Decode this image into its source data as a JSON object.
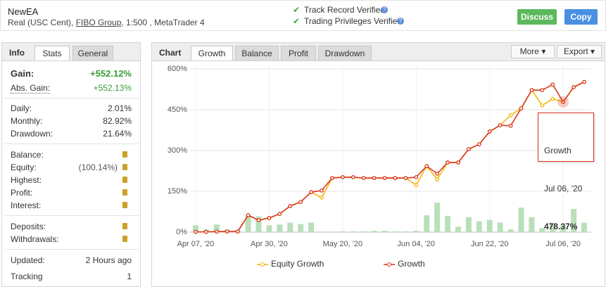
{
  "header": {
    "title": "NewEA",
    "account": "Real (USC Cent), ",
    "broker": "FIBO Group",
    "details": ", 1:500 , MetaTrader 4",
    "badges": [
      "Track Record Verified",
      "Trading Privileges Verified"
    ],
    "buttons": [
      "Discuss",
      "Copy"
    ]
  },
  "info": {
    "tabs": [
      "Info",
      "Stats",
      "General"
    ],
    "gain": {
      "label": "Gain:",
      "value": "+552.12%"
    },
    "abs_gain": {
      "label": "Abs. Gain:",
      "value": "+552.13%"
    },
    "stats": [
      [
        "Daily:",
        "2.01%"
      ],
      [
        "Monthly:",
        "82.92%"
      ],
      [
        "Drawdown:",
        "21.64%"
      ]
    ],
    "funds": [
      [
        "Balance:"
      ],
      [
        "Equity:",
        "(100.14%)"
      ],
      [
        "Highest:"
      ],
      [
        "Profit:"
      ],
      [
        "Interest:"
      ]
    ],
    "transfers": [
      [
        "Deposits:"
      ],
      [
        "Withdrawals:"
      ]
    ],
    "meta": [
      [
        "Updated:",
        "2 Hours ago"
      ],
      [
        "Tracking",
        "1"
      ]
    ]
  },
  "chart_panel": {
    "tabs": [
      "Chart",
      "Growth",
      "Balance",
      "Profit",
      "Drawdown"
    ],
    "menus": [
      "More",
      "Export"
    ]
  },
  "chart_data": {
    "type": "line",
    "categories": [
      "Apr 07, '20",
      null,
      null,
      null,
      null,
      null,
      null,
      "Apr 30, '20",
      null,
      null,
      null,
      null,
      null,
      null,
      "May 20, '20",
      null,
      null,
      null,
      null,
      null,
      null,
      "Jun 04, '20",
      null,
      null,
      null,
      null,
      null,
      null,
      "Jun 22, '20",
      null,
      null,
      null,
      null,
      null,
      null,
      "Jul 06, '20",
      null,
      null
    ],
    "ylim": [
      0,
      600
    ],
    "yticks": [
      {
        "value": 0,
        "label": "0%"
      },
      {
        "value": 150,
        "label": "150%"
      },
      {
        "value": 300,
        "label": "300%"
      },
      {
        "value": 450,
        "label": "450%"
      },
      {
        "value": 600,
        "label": "600%"
      }
    ],
    "grid": true,
    "series": [
      {
        "type": "bar",
        "color": "#b9e0b9",
        "values": [
          25,
          10,
          28,
          10,
          8,
          60,
          58,
          25,
          28,
          35,
          30,
          35,
          2,
          2,
          3,
          3,
          3,
          5,
          5,
          3,
          3,
          5,
          62,
          108,
          60,
          20,
          55,
          40,
          45,
          35,
          10,
          90,
          55,
          15,
          35,
          25,
          85,
          35
        ]
      },
      {
        "name": "Equity Growth",
        "color": "#f2b705",
        "values": [
          1,
          1,
          2,
          2,
          2,
          62,
          44,
          52,
          67,
          96,
          111,
          147,
          127,
          199,
          202,
          202,
          199,
          199,
          199,
          199,
          199,
          173,
          243,
          194,
          256,
          256,
          305,
          323,
          370,
          393,
          430,
          455,
          522,
          466,
          490,
          478.37,
          533,
          552.12
        ]
      },
      {
        "name": "Growth",
        "color": "#d9361c",
        "values": [
          1,
          1,
          2,
          2,
          2,
          62,
          44,
          52,
          67,
          96,
          111,
          147,
          153,
          199,
          202,
          202,
          199,
          199,
          199,
          199,
          199,
          202,
          243,
          215,
          256,
          256,
          305,
          323,
          370,
          393,
          391,
          455,
          522,
          522,
          543,
          478.37,
          533,
          552.12
        ]
      }
    ],
    "tooltip": {
      "label": "478.37%"
    }
  }
}
